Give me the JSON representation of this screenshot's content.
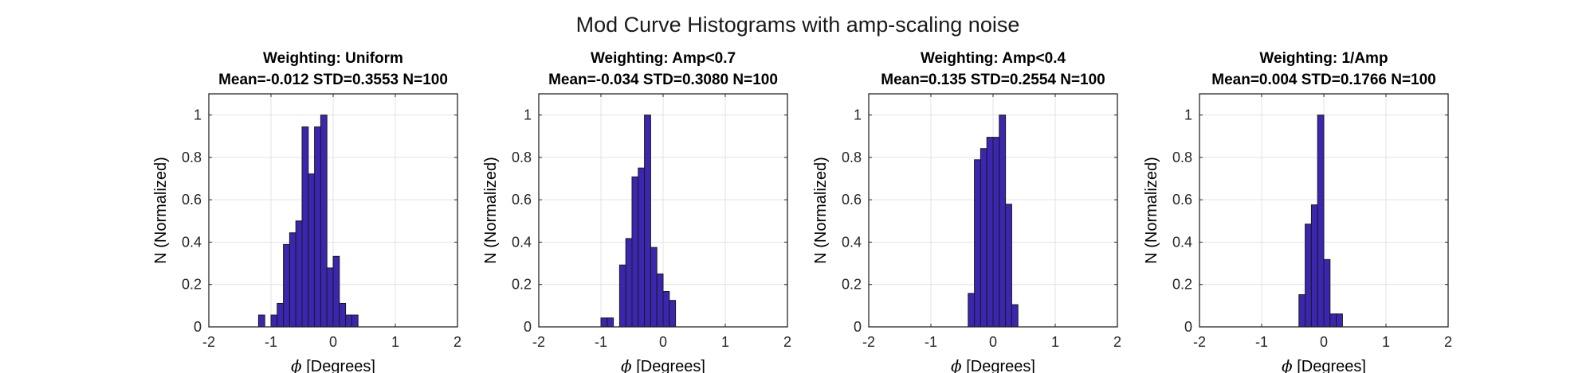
{
  "figure": {
    "title": "Mod Curve Histograms with amp-scaling noise"
  },
  "colors": {
    "bar_fill": "#3b26b0",
    "bar_edge": "#1a1a1a",
    "grid": "#e3e3e3",
    "axis": "#262626",
    "text": "#000000"
  },
  "chart_data": [
    {
      "type": "bar",
      "title_line1": "Weighting: Uniform",
      "title_line2": "Mean=-0.012 STD=0.3553 N=100",
      "xlabel_symbol": "ϕ",
      "xlabel_text": " [Degrees]",
      "ylabel": "N (Normalized)",
      "xlim": [
        -2,
        2
      ],
      "ylim": [
        0,
        1.1
      ],
      "xticks": [
        -2,
        -1,
        0,
        1,
        2
      ],
      "yticks": [
        0,
        0.2,
        0.4,
        0.6,
        0.8,
        1
      ],
      "ytick_labels": [
        "0",
        "0.2",
        "0.4",
        "0.6",
        "0.8",
        "1"
      ],
      "grid": true,
      "bin_width": 0.1,
      "bin_starts": [
        -1.2,
        -1.1,
        -1.0,
        -0.9,
        -0.8,
        -0.7,
        -0.6,
        -0.5,
        -0.4,
        -0.3,
        -0.2,
        -0.1,
        0.0,
        0.1,
        0.2,
        0.3,
        0.4,
        0.5,
        0.6,
        0.7,
        0.8,
        0.9
      ],
      "values": [
        0.056,
        0,
        0.056,
        0.111,
        0.389,
        0.444,
        0.5,
        0.944,
        0.722,
        0.944,
        1.0,
        0.278,
        0.333,
        0.111,
        0.056,
        0.056,
        0,
        0,
        0,
        0,
        0,
        0
      ]
    },
    {
      "type": "bar",
      "title_line1": "Weighting: Amp<0.7",
      "title_line2": "Mean=-0.034 STD=0.3080 N=100",
      "xlabel_symbol": "ϕ",
      "xlabel_text": " [Degrees]",
      "ylabel": "N (Normalized)",
      "xlim": [
        -2,
        2
      ],
      "ylim": [
        0,
        1.1
      ],
      "xticks": [
        -2,
        -1,
        0,
        1,
        2
      ],
      "yticks": [
        0,
        0.2,
        0.4,
        0.6,
        0.8,
        1
      ],
      "ytick_labels": [
        "0",
        "0.2",
        "0.4",
        "0.6",
        "0.8",
        "1"
      ],
      "grid": true,
      "bin_width": 0.1,
      "bin_starts": [
        -1.0,
        -0.9,
        -0.8,
        -0.7,
        -0.6,
        -0.5,
        -0.4,
        -0.3,
        -0.2,
        -0.1,
        0.0,
        0.1,
        0.2,
        0.3,
        0.4,
        0.5,
        0.6
      ],
      "values": [
        0.042,
        0.042,
        0,
        0.292,
        0.417,
        0.708,
        0.75,
        1.0,
        0.375,
        0.25,
        0.167,
        0.125,
        0,
        0,
        0,
        0,
        0
      ]
    },
    {
      "type": "bar",
      "title_line1": "Weighting: Amp<0.4",
      "title_line2": "Mean=0.135 STD=0.2554 N=100",
      "xlabel_symbol": "ϕ",
      "xlabel_text": " [Degrees]",
      "ylabel": "N (Normalized)",
      "xlim": [
        -2,
        2
      ],
      "ylim": [
        0,
        1.1
      ],
      "xticks": [
        -2,
        -1,
        0,
        1,
        2
      ],
      "yticks": [
        0,
        0.2,
        0.4,
        0.6,
        0.8,
        1
      ],
      "ytick_labels": [
        "0",
        "0.2",
        "0.4",
        "0.6",
        "0.8",
        "1"
      ],
      "grid": true,
      "bin_width": 0.1,
      "bin_starts": [
        -0.4,
        -0.3,
        -0.2,
        -0.1,
        0.0,
        0.1,
        0.2,
        0.3,
        0.4,
        0.5,
        0.6
      ],
      "values": [
        0.158,
        0.789,
        0.842,
        0.895,
        0.895,
        1.0,
        0.579,
        0.105,
        0,
        0,
        0
      ]
    },
    {
      "type": "bar",
      "title_line1": "Weighting: 1/Amp",
      "title_line2": "Mean=0.004 STD=0.1766 N=100",
      "xlabel_symbol": "ϕ",
      "xlabel_text": " [Degrees]",
      "ylabel": "N (Normalized)",
      "xlim": [
        -2,
        2
      ],
      "ylim": [
        0,
        1.1
      ],
      "xticks": [
        -2,
        -1,
        0,
        1,
        2
      ],
      "yticks": [
        0,
        0.2,
        0.4,
        0.6,
        0.8,
        1
      ],
      "ytick_labels": [
        "0",
        "0.2",
        "0.4",
        "0.6",
        "0.8",
        "1"
      ],
      "grid": true,
      "bin_width": 0.1,
      "bin_starts": [
        -0.4,
        -0.3,
        -0.2,
        -0.1,
        0.0,
        0.1,
        0.2,
        0.3
      ],
      "values": [
        0.152,
        0.485,
        0.576,
        1.0,
        0.318,
        0.061,
        0.061,
        0
      ]
    }
  ]
}
